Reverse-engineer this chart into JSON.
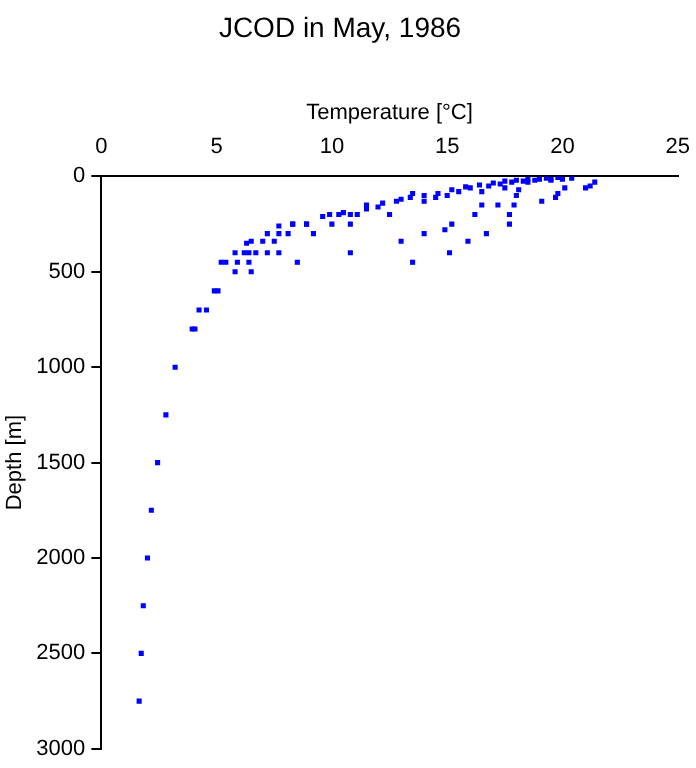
{
  "chart_data": {
    "type": "scatter",
    "title": "JCOD in May, 1986",
    "xlabel": "Temperature [°C]",
    "ylabel": "Depth [m]",
    "xlim": [
      0,
      25
    ],
    "xticks": [
      0,
      5,
      10,
      15,
      20,
      25
    ],
    "ylim": [
      3000,
      0
    ],
    "yticks": [
      0,
      500,
      1000,
      1500,
      2000,
      2500,
      3000
    ],
    "grid": false,
    "marker": "square",
    "series": [
      {
        "color": "#0000ff",
        "x": [
          1.64,
          1.73,
          1.82,
          2.0,
          2.17,
          2.44,
          2.8,
          3.2,
          3.94,
          4.06,
          4.24,
          4.56,
          4.9,
          5.06,
          5.2,
          5.4,
          5.9,
          6.4,
          8.5,
          5.8,
          6.5,
          10.8,
          5.8,
          6.2,
          6.4,
          6.7,
          7.2,
          7.7,
          6.3,
          6.5,
          7.0,
          7.5,
          7.2,
          7.7,
          8.1,
          7.7,
          8.3,
          8.9,
          9.2,
          8.3,
          8.9,
          10.0,
          10.8,
          9.6,
          9.9,
          10.3,
          10.8,
          11.1,
          11.5,
          12.2,
          12.8,
          13.4,
          14.0,
          14.6,
          15.2,
          15.8,
          16.4,
          17.0,
          17.5,
          18.0,
          18.5,
          19.0,
          19.5,
          20.0,
          12.5,
          13.0,
          13.5,
          14.0,
          14.9,
          15.1,
          15.2,
          15.9,
          16.2,
          16.5,
          16.7,
          17.2,
          17.7,
          17.7,
          17.9,
          18.0,
          18.1,
          19.1,
          19.7,
          19.8,
          20.1,
          21.0,
          21.2,
          21.4,
          12.0,
          13.0,
          14.5,
          15.5,
          16.0,
          16.8,
          17.3,
          17.8,
          18.3,
          18.8,
          19.3,
          19.8,
          20.4,
          16.5,
          17.5,
          18.5,
          19.5,
          14.0,
          15.0,
          11.5,
          10.5,
          13.5
        ],
        "values": [
          2750,
          2500,
          2250,
          2000,
          1750,
          1500,
          1250,
          1000,
          800,
          800,
          700,
          700,
          600,
          600,
          450,
          450,
          450,
          450,
          450,
          500,
          500,
          400,
          400,
          400,
          400,
          400,
          400,
          400,
          350,
          340,
          340,
          340,
          300,
          300,
          300,
          260,
          250,
          250,
          300,
          250,
          250,
          250,
          250,
          210,
          200,
          200,
          200,
          200,
          150,
          140,
          130,
          110,
          100,
          90,
          70,
          55,
          45,
          35,
          25,
          20,
          15,
          15,
          15,
          15,
          200,
          340,
          450,
          300,
          280,
          400,
          250,
          340,
          200,
          150,
          300,
          150,
          250,
          200,
          150,
          100,
          70,
          130,
          110,
          90,
          60,
          60,
          50,
          30,
          160,
          120,
          110,
          80,
          60,
          50,
          40,
          30,
          25,
          20,
          10,
          5,
          10,
          80,
          60,
          30,
          20,
          130,
          100,
          170,
          190,
          90
        ]
      }
    ]
  }
}
